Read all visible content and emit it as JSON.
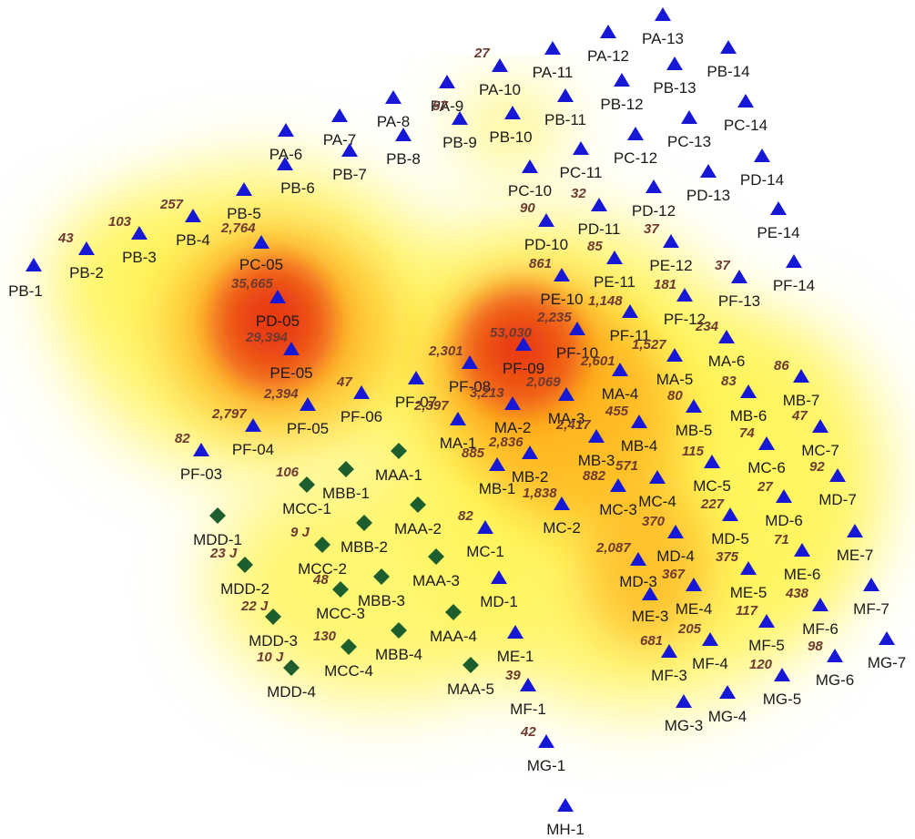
{
  "colors": {
    "background": "#ffffff",
    "triangle_marker": "#1717d6",
    "diamond_marker": "#1e5e2e",
    "station_label": "#1a1a1a",
    "value_label": "#6e3a30",
    "heat_low": "#fff45a",
    "heat_mid": "#ffb21a",
    "heat_high": "#e8350f"
  },
  "marker_types": {
    "triangle": "triangle-station-icon",
    "diamond": "diamond-station-icon"
  },
  "heat_levels": [
    "low",
    "medium",
    "high",
    "peak"
  ],
  "stations": [
    {
      "id": "PB-1",
      "type": "triangle"
    },
    {
      "id": "PB-2",
      "type": "triangle"
    },
    {
      "id": "PB-3",
      "type": "triangle"
    },
    {
      "id": "PB-4",
      "type": "triangle"
    },
    {
      "id": "PB-5",
      "type": "triangle"
    },
    {
      "id": "PB-6",
      "type": "triangle"
    },
    {
      "id": "PB-7",
      "type": "triangle"
    },
    {
      "id": "PB-8",
      "type": "triangle"
    },
    {
      "id": "PB-9",
      "type": "triangle"
    },
    {
      "id": "PB-10",
      "type": "triangle"
    },
    {
      "id": "PB-11",
      "type": "triangle"
    },
    {
      "id": "PB-12",
      "type": "triangle"
    },
    {
      "id": "PB-13",
      "type": "triangle"
    },
    {
      "id": "PB-14",
      "type": "triangle"
    },
    {
      "id": "PA-6",
      "type": "triangle"
    },
    {
      "id": "PA-7",
      "type": "triangle"
    },
    {
      "id": "PA-8",
      "type": "triangle"
    },
    {
      "id": "PA-9",
      "type": "triangle"
    },
    {
      "id": "PA-10",
      "type": "triangle"
    },
    {
      "id": "PA-11",
      "type": "triangle"
    },
    {
      "id": "PA-12",
      "type": "triangle"
    },
    {
      "id": "PA-13",
      "type": "triangle"
    },
    {
      "id": "PC-05",
      "type": "triangle"
    },
    {
      "id": "PC-10",
      "type": "triangle"
    },
    {
      "id": "PC-11",
      "type": "triangle"
    },
    {
      "id": "PC-12",
      "type": "triangle"
    },
    {
      "id": "PC-13",
      "type": "triangle"
    },
    {
      "id": "PC-14",
      "type": "triangle"
    },
    {
      "id": "PD-05",
      "type": "triangle"
    },
    {
      "id": "PD-10",
      "type": "triangle"
    },
    {
      "id": "PD-11",
      "type": "triangle"
    },
    {
      "id": "PD-12",
      "type": "triangle"
    },
    {
      "id": "PD-13",
      "type": "triangle"
    },
    {
      "id": "PD-14",
      "type": "triangle"
    },
    {
      "id": "PE-05",
      "type": "triangle"
    },
    {
      "id": "PE-10",
      "type": "triangle"
    },
    {
      "id": "PE-11",
      "type": "triangle"
    },
    {
      "id": "PE-12",
      "type": "triangle"
    },
    {
      "id": "PE-14",
      "type": "triangle"
    },
    {
      "id": "PF-03",
      "type": "triangle"
    },
    {
      "id": "PF-04",
      "type": "triangle"
    },
    {
      "id": "PF-05",
      "type": "triangle"
    },
    {
      "id": "PF-06",
      "type": "triangle"
    },
    {
      "id": "PF-07",
      "type": "triangle"
    },
    {
      "id": "PF-08",
      "type": "triangle"
    },
    {
      "id": "PF-09",
      "type": "triangle"
    },
    {
      "id": "PF-10",
      "type": "triangle"
    },
    {
      "id": "PF-11",
      "type": "triangle"
    },
    {
      "id": "PF-12",
      "type": "triangle"
    },
    {
      "id": "PF-13",
      "type": "triangle"
    },
    {
      "id": "PF-14",
      "type": "triangle"
    },
    {
      "id": "MA-1",
      "type": "triangle"
    },
    {
      "id": "MA-2",
      "type": "triangle"
    },
    {
      "id": "MA-3",
      "type": "triangle"
    },
    {
      "id": "MA-4",
      "type": "triangle"
    },
    {
      "id": "MA-5",
      "type": "triangle"
    },
    {
      "id": "MA-6",
      "type": "triangle"
    },
    {
      "id": "MB-1",
      "type": "triangle"
    },
    {
      "id": "MB-2",
      "type": "triangle"
    },
    {
      "id": "MB-3",
      "type": "triangle"
    },
    {
      "id": "MB-4",
      "type": "triangle"
    },
    {
      "id": "MB-5",
      "type": "triangle"
    },
    {
      "id": "MB-6",
      "type": "triangle"
    },
    {
      "id": "MB-7",
      "type": "triangle"
    },
    {
      "id": "MC-1",
      "type": "triangle"
    },
    {
      "id": "MC-2",
      "type": "triangle"
    },
    {
      "id": "MC-3",
      "type": "triangle"
    },
    {
      "id": "MC-4",
      "type": "triangle"
    },
    {
      "id": "MC-5",
      "type": "triangle"
    },
    {
      "id": "MC-6",
      "type": "triangle"
    },
    {
      "id": "MC-7",
      "type": "triangle"
    },
    {
      "id": "MD-1",
      "type": "triangle"
    },
    {
      "id": "MD-3",
      "type": "triangle"
    },
    {
      "id": "MD-4",
      "type": "triangle"
    },
    {
      "id": "MD-5",
      "type": "triangle"
    },
    {
      "id": "MD-6",
      "type": "triangle"
    },
    {
      "id": "MD-7",
      "type": "triangle"
    },
    {
      "id": "ME-1",
      "type": "triangle"
    },
    {
      "id": "ME-3",
      "type": "triangle"
    },
    {
      "id": "ME-4",
      "type": "triangle"
    },
    {
      "id": "ME-5",
      "type": "triangle"
    },
    {
      "id": "ME-6",
      "type": "triangle"
    },
    {
      "id": "ME-7",
      "type": "triangle"
    },
    {
      "id": "MF-1",
      "type": "triangle"
    },
    {
      "id": "MF-3",
      "type": "triangle"
    },
    {
      "id": "MF-4",
      "type": "triangle"
    },
    {
      "id": "MF-5",
      "type": "triangle"
    },
    {
      "id": "MF-6",
      "type": "triangle"
    },
    {
      "id": "MF-7",
      "type": "triangle"
    },
    {
      "id": "MG-1",
      "type": "triangle"
    },
    {
      "id": "MG-3",
      "type": "triangle"
    },
    {
      "id": "MG-4",
      "type": "triangle"
    },
    {
      "id": "MG-5",
      "type": "triangle"
    },
    {
      "id": "MG-6",
      "type": "triangle"
    },
    {
      "id": "MG-7",
      "type": "triangle"
    },
    {
      "id": "MH-1",
      "type": "triangle"
    },
    {
      "id": "MAA-1",
      "type": "diamond"
    },
    {
      "id": "MAA-2",
      "type": "diamond"
    },
    {
      "id": "MAA-3",
      "type": "diamond"
    },
    {
      "id": "MAA-4",
      "type": "diamond"
    },
    {
      "id": "MAA-5",
      "type": "diamond"
    },
    {
      "id": "MBB-1",
      "type": "diamond"
    },
    {
      "id": "MBB-2",
      "type": "diamond"
    },
    {
      "id": "MBB-3",
      "type": "diamond"
    },
    {
      "id": "MBB-4",
      "type": "diamond"
    },
    {
      "id": "MCC-1",
      "type": "diamond"
    },
    {
      "id": "MCC-2",
      "type": "diamond"
    },
    {
      "id": "MCC-3",
      "type": "diamond"
    },
    {
      "id": "MCC-4",
      "type": "diamond"
    },
    {
      "id": "MDD-1",
      "type": "diamond"
    },
    {
      "id": "MDD-2",
      "type": "diamond"
    },
    {
      "id": "MDD-3",
      "type": "diamond"
    },
    {
      "id": "MDD-4",
      "type": "diamond"
    }
  ],
  "values": [
    {
      "station": "PB-2",
      "text": "43"
    },
    {
      "station": "PB-3",
      "text": "103"
    },
    {
      "station": "PB-4",
      "text": "257"
    },
    {
      "station": "PC-05",
      "text": "2,764"
    },
    {
      "station": "PD-05",
      "text": "35,665"
    },
    {
      "station": "PE-05",
      "text": "29,394"
    },
    {
      "station": "PF-05",
      "text": "2,394"
    },
    {
      "station": "PF-04",
      "text": "2,797"
    },
    {
      "station": "PF-03",
      "text": "82"
    },
    {
      "station": "PF-06",
      "text": "47"
    },
    {
      "station": "PA-10",
      "text": "27"
    },
    {
      "station": "PA-9",
      "text": "57"
    },
    {
      "station": "PD-11",
      "text": "32"
    },
    {
      "station": "PD-10",
      "text": "90"
    },
    {
      "station": "PE-12",
      "text": "37"
    },
    {
      "station": "PE-11",
      "text": "85"
    },
    {
      "station": "PE-10",
      "text": "861"
    },
    {
      "station": "PF-13",
      "text": "37"
    },
    {
      "station": "PF-12",
      "text": "181"
    },
    {
      "station": "PF-11",
      "text": "1,148"
    },
    {
      "station": "PF-10",
      "text": "2,235"
    },
    {
      "station": "PF-09",
      "text": "53,030"
    },
    {
      "station": "PF-08",
      "text": "2,301"
    },
    {
      "station": "PF-07",
      "text": "2,397"
    },
    {
      "station": "MA-6",
      "text": "234"
    },
    {
      "station": "MA-5",
      "text": "1,527"
    },
    {
      "station": "MA-4",
      "text": "2,601"
    },
    {
      "station": "MA-3",
      "text": "2,069"
    },
    {
      "station": "MA-2",
      "text": "3,213"
    },
    {
      "station": "MB-7",
      "text": "86"
    },
    {
      "station": "MB-6",
      "text": "83"
    },
    {
      "station": "MB-5",
      "text": "80"
    },
    {
      "station": "MB-4",
      "text": "455"
    },
    {
      "station": "MB-3",
      "text": "2,417"
    },
    {
      "station": "MB-2",
      "text": "2,836"
    },
    {
      "station": "MB-1",
      "text": "885"
    },
    {
      "station": "MC-7",
      "text": "47"
    },
    {
      "station": "MC-6",
      "text": "74"
    },
    {
      "station": "MC-5",
      "text": "115"
    },
    {
      "station": "MC-4",
      "text": "571"
    },
    {
      "station": "MC-3",
      "text": "882"
    },
    {
      "station": "MC-2",
      "text": "1,838"
    },
    {
      "station": "MC-1",
      "text": "82"
    },
    {
      "station": "MD-7",
      "text": "92"
    },
    {
      "station": "MD-6",
      "text": "27"
    },
    {
      "station": "MD-5",
      "text": "227"
    },
    {
      "station": "MD-4",
      "text": "370"
    },
    {
      "station": "MD-3",
      "text": "2,087"
    },
    {
      "station": "ME-6",
      "text": "71"
    },
    {
      "station": "ME-5",
      "text": "375"
    },
    {
      "station": "ME-4",
      "text": "367"
    },
    {
      "station": "MF-6",
      "text": "438"
    },
    {
      "station": "MF-5",
      "text": "117"
    },
    {
      "station": "MF-4",
      "text": "205"
    },
    {
      "station": "MF-3",
      "text": "681"
    },
    {
      "station": "MG-6",
      "text": "98"
    },
    {
      "station": "MG-5",
      "text": "120"
    },
    {
      "station": "MF-1",
      "text": "39"
    },
    {
      "station": "MG-1",
      "text": "42"
    },
    {
      "station": "MCC-1",
      "text": "106"
    },
    {
      "station": "MCC-2",
      "text": "9 J"
    },
    {
      "station": "MCC-3",
      "text": "48"
    },
    {
      "station": "MCC-4",
      "text": "130"
    },
    {
      "station": "MDD-1",
      "text": "23 J"
    },
    {
      "station": "MDD-2",
      "text": "22 J"
    },
    {
      "station": "MDD-3",
      "text": "10 J"
    }
  ]
}
